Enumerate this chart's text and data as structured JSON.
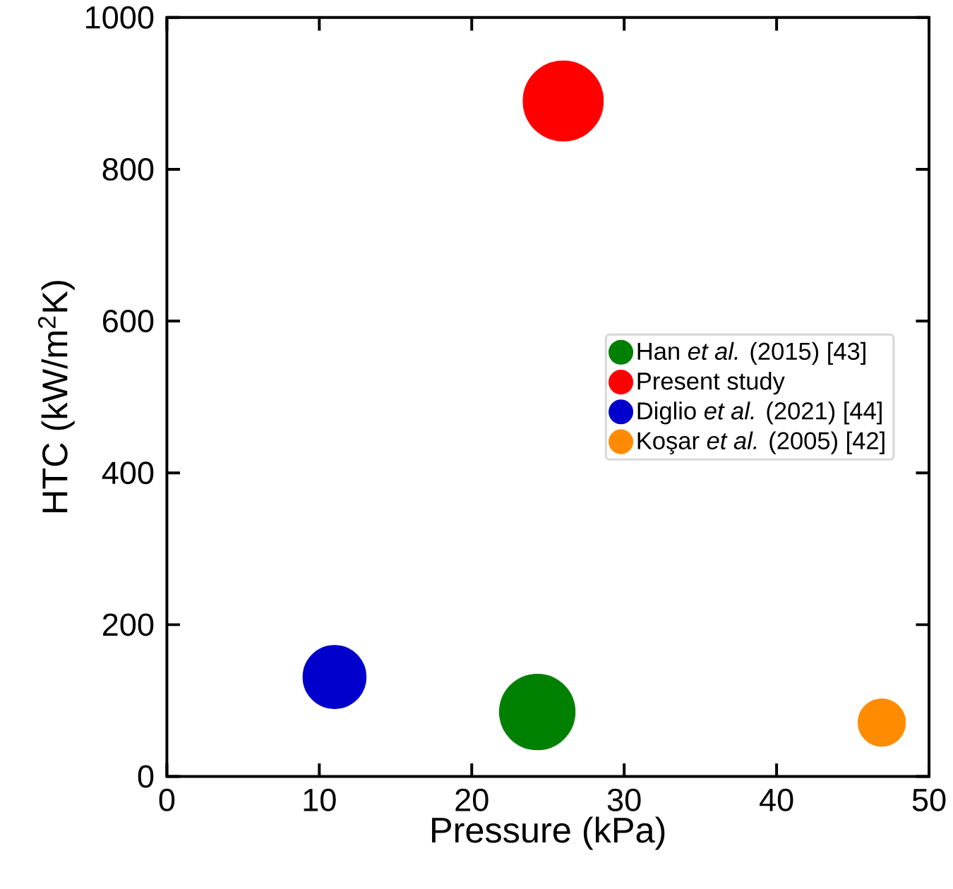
{
  "chart_data": {
    "type": "bubble",
    "xlabel": "Pressure (kPa)",
    "ylabel": "HTC (kW/m$^{2}$K)",
    "xlim": [
      0,
      50
    ],
    "xticks": [
      0,
      10,
      20,
      30,
      40,
      50
    ],
    "ylim": [
      0,
      1000
    ],
    "yticks": [
      0,
      200,
      400,
      600,
      800,
      1000
    ],
    "legend": "right",
    "marker": "circle",
    "series": [
      {
        "name": "Han *et al.* (2015) [43]",
        "color": "#008000",
        "x": [
          24.3
        ],
        "values": [
          85
        ],
        "sizes": [
          0.89
        ]
      },
      {
        "name": "Present study",
        "color": "#ff0000",
        "x": [
          26.0
        ],
        "values": [
          890
        ],
        "sizes": [
          1
        ]
      },
      {
        "name": "Diglio *et al.* (2021) [44]",
        "color": "#0000cc",
        "x": [
          11.0
        ],
        "values": [
          131
        ],
        "sizes": [
          0.62
        ]
      },
      {
        "name": "Koşar *et al.* (2005) [42]",
        "color": "#ff8c00",
        "x": [
          46.9
        ],
        "values": [
          71
        ],
        "sizes": [
          0.35
        ]
      }
    ]
  }
}
